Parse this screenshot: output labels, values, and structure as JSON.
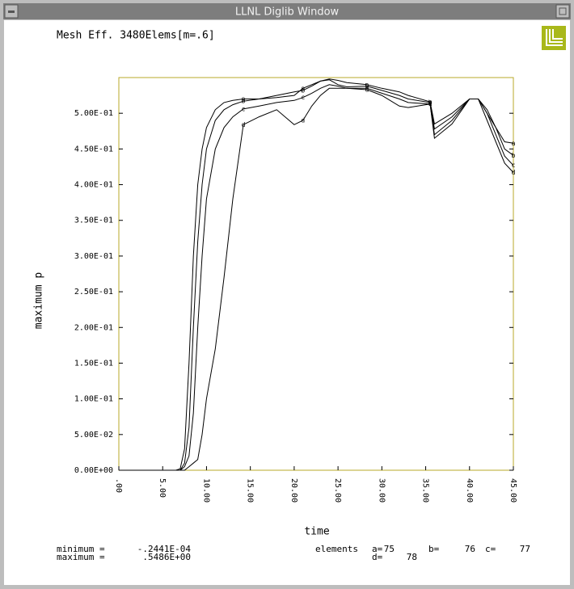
{
  "window": {
    "title": "LLNL Diglib Window"
  },
  "chart_data": {
    "type": "line",
    "title": "Mesh Eff. 3480Elems[m=.6]",
    "x_label": "time",
    "y_label": "maximum p",
    "x": [
      0,
      6.5,
      7,
      7.5,
      8,
      8.5,
      9,
      9.5,
      10,
      11,
      12,
      13,
      14.2,
      16,
      18,
      20,
      21,
      22,
      23,
      24,
      25,
      26,
      28.3,
      30,
      32,
      33,
      35.5,
      36,
      38,
      40,
      41,
      42,
      43,
      44,
      45
    ],
    "series": [
      {
        "name": "a",
        "color": "#000000",
        "values": [
          0,
          0,
          0.002,
          0.03,
          0.15,
          0.3,
          0.4,
          0.45,
          0.48,
          0.505,
          0.515,
          0.518,
          0.52,
          0.52,
          0.522,
          0.525,
          0.535,
          0.54,
          0.545,
          0.548,
          0.546,
          0.543,
          0.54,
          0.535,
          0.53,
          0.525,
          0.516,
          0.485,
          0.5,
          0.52,
          0.52,
          0.5,
          0.48,
          0.46,
          0.458
        ]
      },
      {
        "name": "b",
        "color": "#000000",
        "values": [
          0,
          0,
          0,
          0.01,
          0.06,
          0.2,
          0.32,
          0.4,
          0.45,
          0.49,
          0.505,
          0.512,
          0.517,
          0.52,
          0.525,
          0.53,
          0.532,
          0.538,
          0.545,
          0.547,
          0.54,
          0.537,
          0.538,
          0.532,
          0.525,
          0.52,
          0.515,
          0.478,
          0.495,
          0.52,
          0.52,
          0.505,
          0.48,
          0.45,
          0.441
        ]
      },
      {
        "name": "c",
        "color": "#000000",
        "values": [
          0,
          0,
          0,
          0.005,
          0.02,
          0.08,
          0.2,
          0.3,
          0.38,
          0.45,
          0.48,
          0.495,
          0.506,
          0.51,
          0.515,
          0.518,
          0.522,
          0.528,
          0.535,
          0.54,
          0.538,
          0.535,
          0.535,
          0.528,
          0.52,
          0.515,
          0.513,
          0.47,
          0.49,
          0.52,
          0.52,
          0.5,
          0.47,
          0.44,
          0.427
        ]
      },
      {
        "name": "d",
        "color": "#000000",
        "values": [
          0,
          0,
          0,
          0,
          0.005,
          0.01,
          0.015,
          0.05,
          0.1,
          0.17,
          0.27,
          0.38,
          0.484,
          0.495,
          0.505,
          0.484,
          0.49,
          0.51,
          0.525,
          0.535,
          0.535,
          0.535,
          0.533,
          0.525,
          0.51,
          0.508,
          0.513,
          0.465,
          0.485,
          0.52,
          0.52,
          0.49,
          0.46,
          0.43,
          0.417
        ]
      }
    ],
    "xlim": [
      0,
      45
    ],
    "ylim": [
      0,
      0.55
    ],
    "xticks": [
      {
        "value": 0,
        "label": ".00"
      },
      {
        "value": 5,
        "label": "5.00"
      },
      {
        "value": 10,
        "label": "10.00"
      },
      {
        "value": 15,
        "label": "15.00"
      },
      {
        "value": 20,
        "label": "20.00"
      },
      {
        "value": 25,
        "label": "25.00"
      },
      {
        "value": 30,
        "label": "30.00"
      },
      {
        "value": 35,
        "label": "35.00"
      },
      {
        "value": 40,
        "label": "40.00"
      },
      {
        "value": 45,
        "label": "45.00"
      }
    ],
    "yticks": [
      {
        "value": 0,
        "label": "0.00E+00"
      },
      {
        "value": 0.05,
        "label": "5.00E-02"
      },
      {
        "value": 0.1,
        "label": "1.00E-01"
      },
      {
        "value": 0.15,
        "label": "1.50E-01"
      },
      {
        "value": 0.2,
        "label": "2.00E-01"
      },
      {
        "value": 0.25,
        "label": "2.50E-01"
      },
      {
        "value": 0.3,
        "label": "3.00E-01"
      },
      {
        "value": 0.35,
        "label": "3.50E-01"
      },
      {
        "value": 0.4,
        "label": "4.00E-01"
      },
      {
        "value": 0.45,
        "label": "4.50E-01"
      },
      {
        "value": 0.5,
        "label": "5.00E-01"
      }
    ],
    "frame_color": "#b8a82a"
  },
  "footer": {
    "minimum_label": "minimum =",
    "minimum_value": "-.2441E-04",
    "maximum_label": "maximum =",
    "maximum_value": ".5486E+00",
    "elements_label": "elements",
    "elements": [
      {
        "label": "a=",
        "value": "75"
      },
      {
        "label": "b=",
        "value": "76"
      },
      {
        "label": "c=",
        "value": "77"
      },
      {
        "label": "d=",
        "value": "78"
      }
    ]
  }
}
